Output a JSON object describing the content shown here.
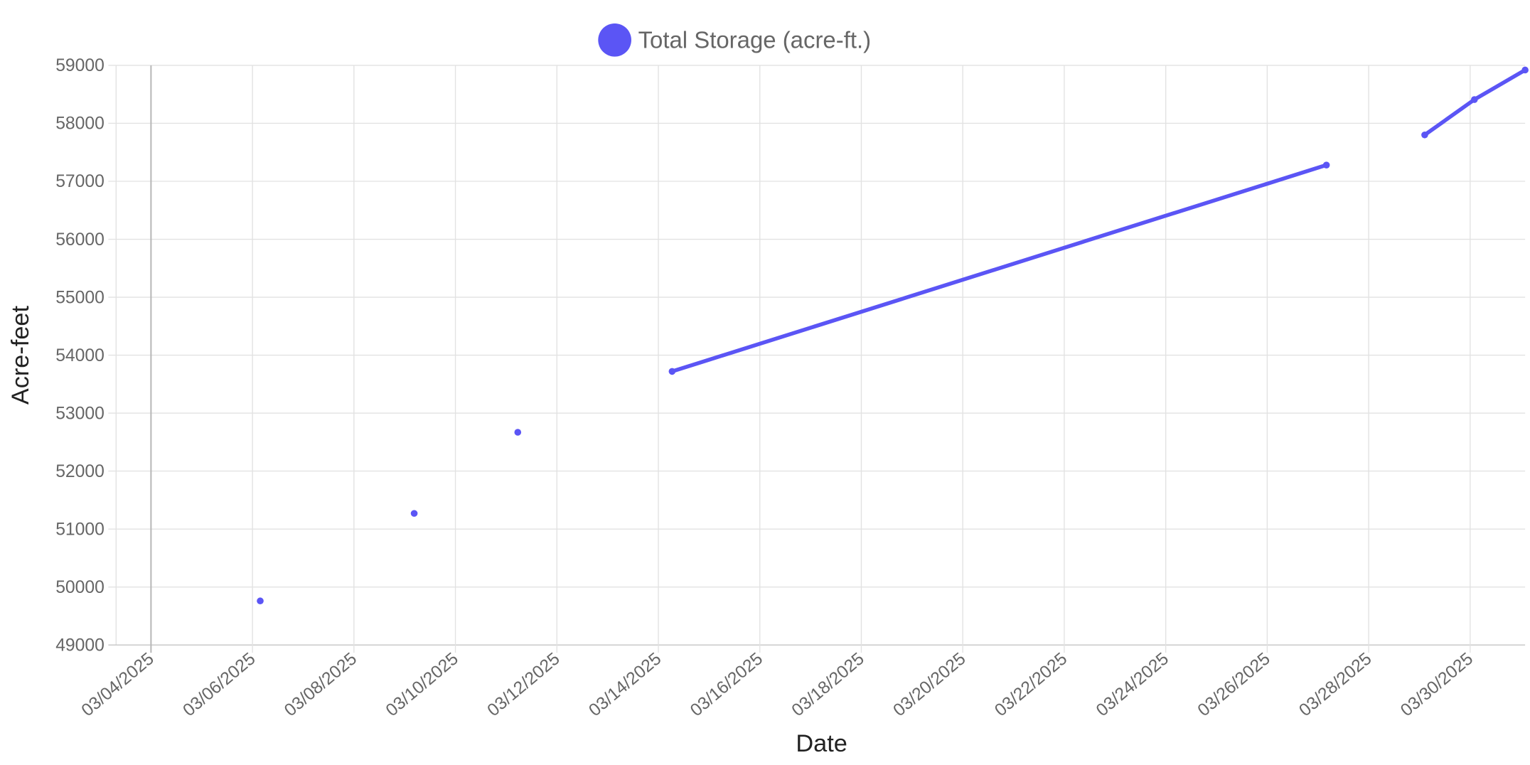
{
  "chart_data": {
    "type": "line",
    "title": "",
    "xlabel": "Date",
    "ylabel": "Acre-feet",
    "legend": {
      "position": "top-center",
      "entries": [
        "Total Storage (acre-ft.)"
      ]
    },
    "ylim": [
      49000,
      59000
    ],
    "yticks": [
      "59000",
      "58000",
      "57000",
      "56000",
      "55000",
      "54000",
      "53000",
      "52000",
      "51000",
      "50000",
      "49000"
    ],
    "xlim": [
      "2025-03-03T07:30",
      "2025-03-31T02:00"
    ],
    "xticks": [
      "03/04/2025",
      "03/06/2025",
      "03/08/2025",
      "03/10/2025",
      "03/12/2025",
      "03/14/2025",
      "03/16/2025",
      "03/18/2025",
      "03/20/2025",
      "03/22/2025",
      "03/24/2025",
      "03/26/2025",
      "03/28/2025",
      "03/30/2025"
    ],
    "grid": true,
    "series": [
      {
        "name": "Total Storage (acre-ft.)",
        "color": "#5b55f5",
        "points": [
          {
            "x": "2025-03-06T03:40",
            "y": 49760
          },
          {
            "x": "2025-03-07T12:00",
            "y": null
          },
          {
            "x": "2025-03-09T04:30",
            "y": 51270
          },
          {
            "x": "2025-03-10T12:00",
            "y": null
          },
          {
            "x": "2025-03-11T05:30",
            "y": 52670
          },
          {
            "x": "2025-03-12T12:00",
            "y": null
          },
          {
            "x": "2025-03-14T06:30",
            "y": 53720
          },
          {
            "x": "2025-03-27T04:00",
            "y": 57280
          },
          {
            "x": "2025-03-28T12:00",
            "y": null
          },
          {
            "x": "2025-03-29T02:30",
            "y": 57800
          },
          {
            "x": "2025-03-30T02:00",
            "y": 58410
          },
          {
            "x": "2025-03-31T02:00",
            "y": 58920
          }
        ]
      }
    ]
  }
}
